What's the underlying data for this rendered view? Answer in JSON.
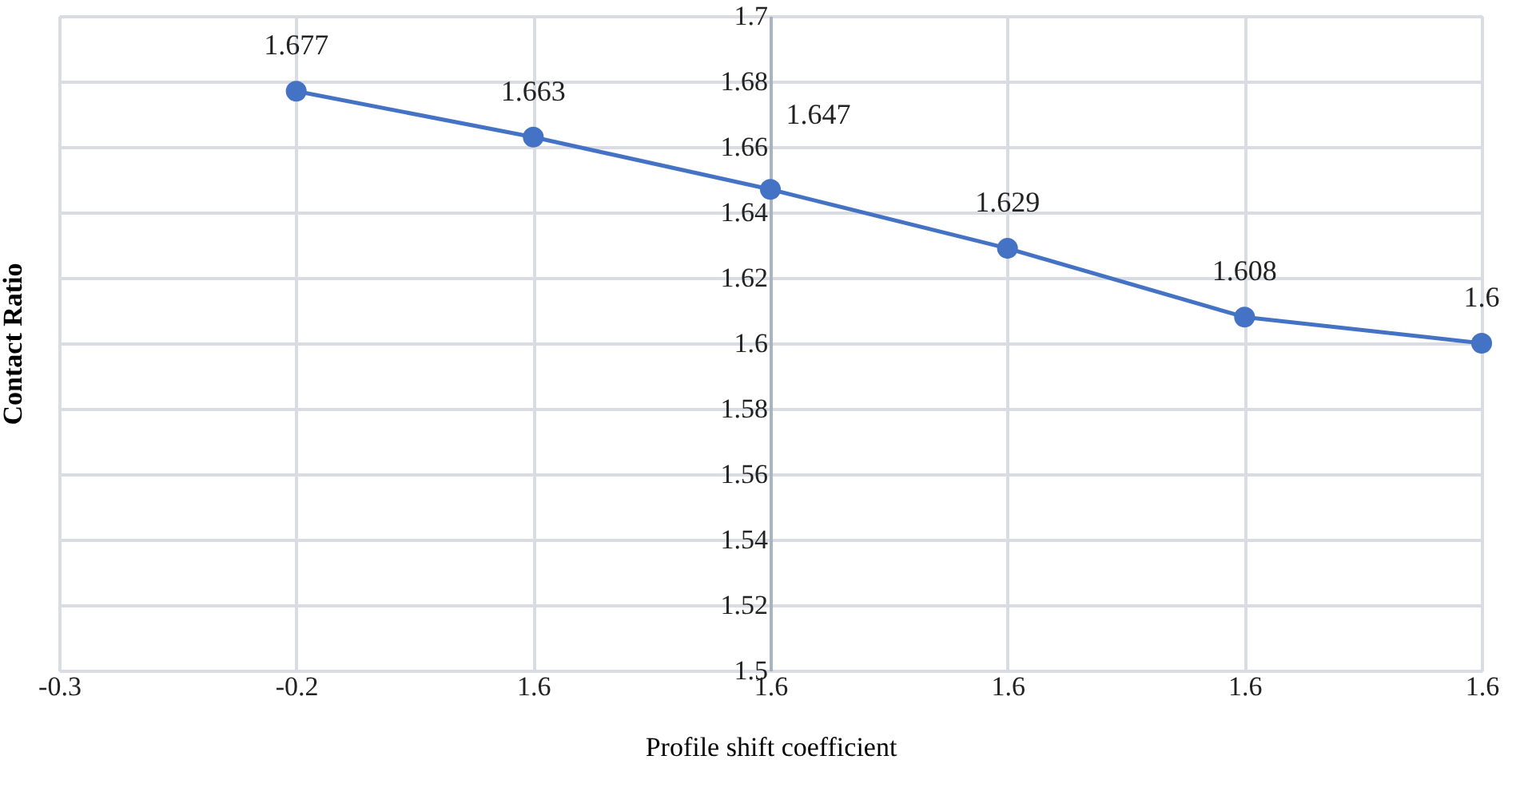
{
  "chart_data": {
    "type": "line",
    "xlabel": "Profile shift coefficient",
    "ylabel": "Contact Ratio",
    "categories": [
      "-0.3",
      "-0.2",
      "1.6",
      "1.6",
      "1.6",
      "1.6",
      "1.6"
    ],
    "series": [
      {
        "color": "#4472c4",
        "values": [
          null,
          1.677,
          1.663,
          1.647,
          1.629,
          1.608,
          1.6
        ]
      }
    ],
    "ylim": [
      1.5,
      1.7
    ],
    "yticks": [
      1.5,
      1.52,
      1.54,
      1.56,
      1.58,
      1.6,
      1.62,
      1.64,
      1.66,
      1.68,
      1.7
    ],
    "grid": true,
    "marker": "circle",
    "line_style": "solid",
    "data_labels": true
  }
}
